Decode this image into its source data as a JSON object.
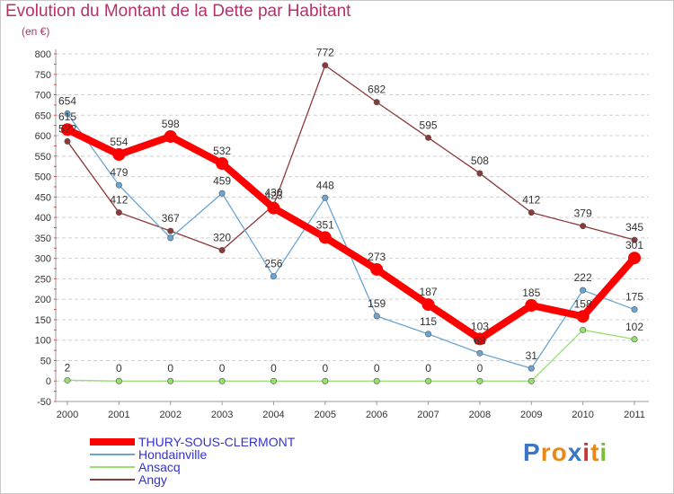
{
  "title": "Evolution du Montant de la Dette par Habitant",
  "subtitle": "(en €)",
  "logo": "Proxiti",
  "chart_data": {
    "type": "line",
    "title": "Evolution du Montant de la Dette par Habitant",
    "ylabel": "(en €)",
    "categories": [
      "2000",
      "2001",
      "2002",
      "2003",
      "2004",
      "2005",
      "2006",
      "2007",
      "2008",
      "2009",
      "2010",
      "2011"
    ],
    "ylim": [
      -50,
      800
    ],
    "yticks": [
      -50,
      0,
      50,
      100,
      150,
      200,
      250,
      300,
      350,
      400,
      450,
      500,
      550,
      600,
      650,
      700,
      750,
      800
    ],
    "grid": "horizontal dashed",
    "legend_position": "bottom-left",
    "series": [
      {
        "name": "THURY-SOUS-CLERMONT",
        "color": "#ff0000",
        "values": [
          615,
          554,
          598,
          532,
          423,
          351,
          273,
          187,
          103,
          185,
          158,
          301
        ],
        "labels": [
          "615",
          "554",
          "598",
          "532",
          "423",
          "351",
          "273",
          "187",
          "103",
          "185",
          "158",
          "301"
        ]
      },
      {
        "name": "Hondainville",
        "color": "#6aa5d4",
        "values": [
          654,
          479,
          350,
          459,
          256,
          448,
          159,
          115,
          68,
          31,
          222,
          175
        ],
        "labels": [
          "654",
          "479",
          "",
          "459",
          "256",
          "448",
          "159",
          "115",
          "68",
          "31",
          "222",
          "175"
        ]
      },
      {
        "name": "Ansacq",
        "color": "#98df70",
        "values": [
          2,
          0,
          0,
          0,
          0,
          0,
          0,
          0,
          0,
          0,
          125,
          102
        ],
        "labels": [
          "2",
          "0",
          "0",
          "0",
          "0",
          "0",
          "0",
          "0",
          "0",
          "",
          "",
          "102"
        ]
      },
      {
        "name": "Angy",
        "color": "#8b3a3a",
        "values": [
          586,
          412,
          367,
          320,
          430,
          772,
          682,
          595,
          508,
          412,
          379,
          345
        ],
        "labels": [
          "5??",
          "412",
          "367",
          "320",
          "430",
          "772",
          "682",
          "595",
          "508",
          "412",
          "379",
          "345"
        ]
      }
    ]
  }
}
